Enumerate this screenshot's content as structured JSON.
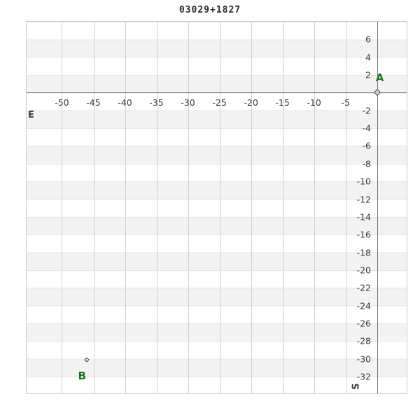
{
  "title": "03029+1827",
  "chart_data": {
    "type": "scatter",
    "title": "03029+1827",
    "points": [
      {
        "label": "A",
        "x": 0,
        "y": 0,
        "label_pos": "above-right",
        "marker_size": 7,
        "marker_fill": "#d4d4d4",
        "marker_border": "#4a4a4a"
      },
      {
        "label": "B",
        "x": -46.1,
        "y": -30.1,
        "label_pos": "below-left",
        "marker_size": 5,
        "marker_fill": "#fafafa",
        "marker_border": "#2f2f2f"
      }
    ],
    "xticks": [
      -50,
      -45,
      -40,
      -35,
      -30,
      -25,
      -20,
      -15,
      -10,
      -5
    ],
    "yticks": [
      6,
      4,
      2,
      -2,
      -4,
      -6,
      -8,
      -10,
      -12,
      -14,
      -16,
      -18,
      -20,
      -22,
      -24,
      -26,
      -28,
      -30,
      -32
    ],
    "xlim": [
      -55.6,
      4.7
    ],
    "ylim": [
      -33.9,
      8.0
    ],
    "grid": "vertical lines at x ticks; horizontal stripe bands every 2 units",
    "legend": "none",
    "axes_through_origin": true,
    "compass": {
      "east": "E",
      "south": "S"
    },
    "point_label_color": "#1a7a1a"
  },
  "colors": {
    "point_label_green": "#1a7a1a",
    "axis_line": "#6e6e6e",
    "grid_line": "#cfcfcf",
    "stripe_fill": "#f3f3f3",
    "stripe_line": "#e5e5e5",
    "plot_border": "#cccccc",
    "tick_text": "#3a3a3a",
    "title_text": "#2b2b2b"
  }
}
